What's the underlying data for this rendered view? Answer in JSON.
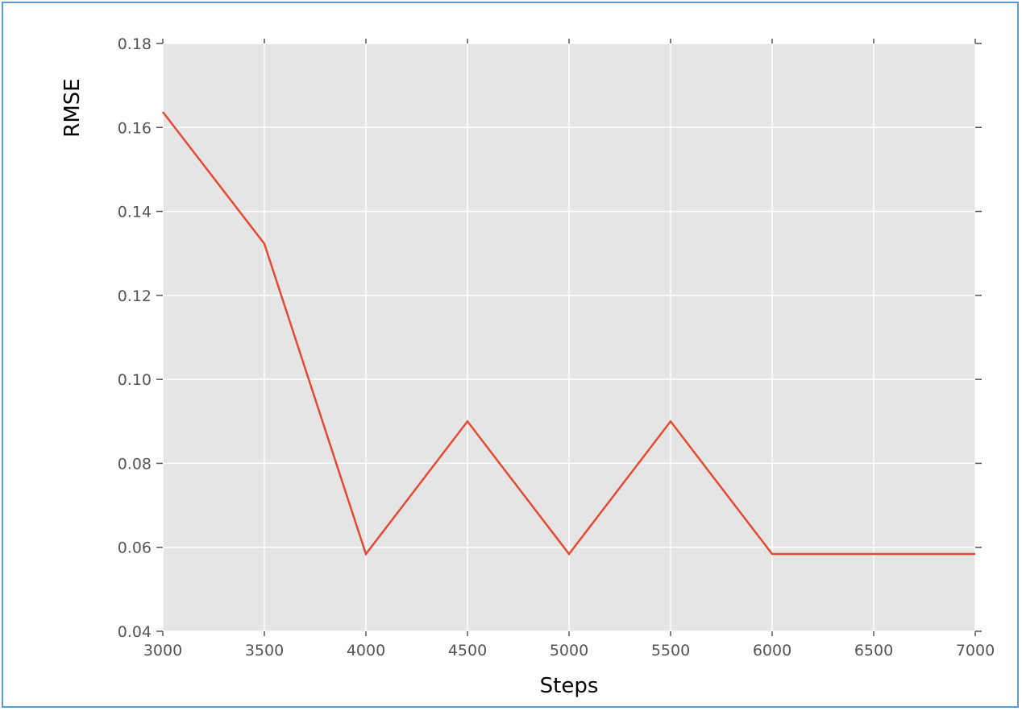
{
  "chart_data": {
    "type": "line",
    "title": "",
    "xlabel": "Steps",
    "ylabel": "RMSE",
    "xlim": [
      3000,
      7000
    ],
    "ylim": [
      0.04,
      0.18
    ],
    "xticks": [
      "3000",
      "3500",
      "4000",
      "4500",
      "5000",
      "5500",
      "6000",
      "6500",
      "7000"
    ],
    "yticks": [
      "0.04",
      "0.06",
      "0.08",
      "0.10",
      "0.12",
      "0.14",
      "0.16",
      "0.18"
    ],
    "grid": true,
    "background": "#e5e5e5",
    "line_color": "#e24a33",
    "frame_color": "#5b9bd5",
    "series": [
      {
        "x": [
          3000,
          3500,
          4000,
          4500,
          5000,
          5500,
          6000,
          6500,
          7000
        ],
        "y": [
          0.1637,
          0.1323,
          0.0584,
          0.09,
          0.0584,
          0.09,
          0.0584,
          0.0584,
          0.0584
        ]
      }
    ]
  }
}
